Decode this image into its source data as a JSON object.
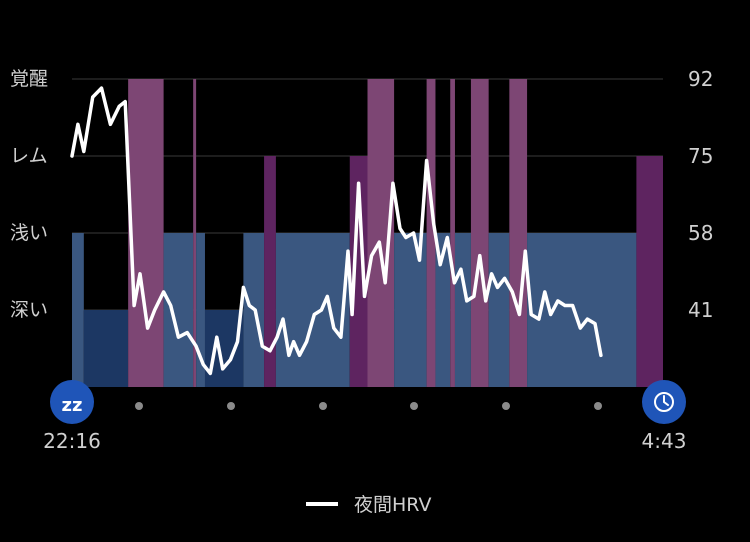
{
  "chart_data": {
    "type": "area",
    "y_left_ticks": [
      "覚醒",
      "レム",
      "浅い",
      "深い"
    ],
    "y_right_ticks": [
      "92",
      "75",
      "58",
      "41"
    ],
    "x_start": "22:16",
    "x_end": "4:43",
    "legend": "夜間HRV",
    "ylim": [
      24,
      92
    ],
    "legend_position": "bottom-center",
    "grid": true,
    "colors": {
      "awake": "#7d4674",
      "rem": "#5e2460",
      "light": "#3a5780",
      "deep": "#1c3763",
      "line": "#ffffff",
      "grid": "#3a3a3a",
      "icon": "#1f55b8"
    },
    "icons": {
      "start": "sleep-zz-icon",
      "end": "clock-icon"
    },
    "stages": [
      {
        "stage": "light",
        "start": 0.0,
        "end": 0.02
      },
      {
        "stage": "deep",
        "start": 0.02,
        "end": 0.095
      },
      {
        "stage": "awake",
        "start": 0.095,
        "end": 0.155
      },
      {
        "stage": "light",
        "start": 0.155,
        "end": 0.205
      },
      {
        "stage": "awake",
        "start": 0.205,
        "end": 0.21
      },
      {
        "stage": "light",
        "start": 0.21,
        "end": 0.225
      },
      {
        "stage": "deep",
        "start": 0.225,
        "end": 0.29
      },
      {
        "stage": "light",
        "start": 0.29,
        "end": 0.325
      },
      {
        "stage": "rem",
        "start": 0.325,
        "end": 0.345
      },
      {
        "stage": "light",
        "start": 0.345,
        "end": 0.47
      },
      {
        "stage": "rem",
        "start": 0.47,
        "end": 0.5
      },
      {
        "stage": "awake",
        "start": 0.5,
        "end": 0.545
      },
      {
        "stage": "light",
        "start": 0.545,
        "end": 0.6
      },
      {
        "stage": "awake",
        "start": 0.6,
        "end": 0.615
      },
      {
        "stage": "light",
        "start": 0.615,
        "end": 0.64
      },
      {
        "stage": "awake",
        "start": 0.64,
        "end": 0.648
      },
      {
        "stage": "light",
        "start": 0.648,
        "end": 0.675
      },
      {
        "stage": "awake",
        "start": 0.675,
        "end": 0.705
      },
      {
        "stage": "light",
        "start": 0.705,
        "end": 0.74
      },
      {
        "stage": "awake",
        "start": 0.74,
        "end": 0.77
      },
      {
        "stage": "light",
        "start": 0.77,
        "end": 0.955
      },
      {
        "stage": "rem",
        "start": 0.955,
        "end": 1.0
      }
    ],
    "series": [
      {
        "values": [
          {
            "x": 0.0,
            "y": 75
          },
          {
            "x": 0.01,
            "y": 82
          },
          {
            "x": 0.02,
            "y": 76
          },
          {
            "x": 0.035,
            "y": 88
          },
          {
            "x": 0.05,
            "y": 90
          },
          {
            "x": 0.065,
            "y": 82
          },
          {
            "x": 0.08,
            "y": 86
          },
          {
            "x": 0.09,
            "y": 87
          },
          {
            "x": 0.105,
            "y": 42
          },
          {
            "x": 0.115,
            "y": 49
          },
          {
            "x": 0.128,
            "y": 37
          },
          {
            "x": 0.14,
            "y": 41
          },
          {
            "x": 0.155,
            "y": 45
          },
          {
            "x": 0.167,
            "y": 42
          },
          {
            "x": 0.18,
            "y": 35
          },
          {
            "x": 0.195,
            "y": 36
          },
          {
            "x": 0.21,
            "y": 33
          },
          {
            "x": 0.222,
            "y": 29
          },
          {
            "x": 0.234,
            "y": 27
          },
          {
            "x": 0.245,
            "y": 35
          },
          {
            "x": 0.255,
            "y": 28
          },
          {
            "x": 0.268,
            "y": 30
          },
          {
            "x": 0.28,
            "y": 34
          },
          {
            "x": 0.29,
            "y": 46
          },
          {
            "x": 0.3,
            "y": 42
          },
          {
            "x": 0.31,
            "y": 41
          },
          {
            "x": 0.322,
            "y": 33
          },
          {
            "x": 0.335,
            "y": 32
          },
          {
            "x": 0.347,
            "y": 35
          },
          {
            "x": 0.357,
            "y": 39
          },
          {
            "x": 0.367,
            "y": 31
          },
          {
            "x": 0.375,
            "y": 34
          },
          {
            "x": 0.385,
            "y": 31
          },
          {
            "x": 0.397,
            "y": 34
          },
          {
            "x": 0.41,
            "y": 40
          },
          {
            "x": 0.422,
            "y": 41
          },
          {
            "x": 0.432,
            "y": 44
          },
          {
            "x": 0.443,
            "y": 37
          },
          {
            "x": 0.455,
            "y": 35
          },
          {
            "x": 0.467,
            "y": 54
          },
          {
            "x": 0.474,
            "y": 40
          },
          {
            "x": 0.485,
            "y": 69
          },
          {
            "x": 0.495,
            "y": 44
          },
          {
            "x": 0.507,
            "y": 53
          },
          {
            "x": 0.52,
            "y": 56
          },
          {
            "x": 0.53,
            "y": 47
          },
          {
            "x": 0.543,
            "y": 69
          },
          {
            "x": 0.555,
            "y": 59
          },
          {
            "x": 0.565,
            "y": 57
          },
          {
            "x": 0.578,
            "y": 58
          },
          {
            "x": 0.588,
            "y": 52
          },
          {
            "x": 0.6,
            "y": 74
          },
          {
            "x": 0.612,
            "y": 60
          },
          {
            "x": 0.623,
            "y": 51
          },
          {
            "x": 0.635,
            "y": 57
          },
          {
            "x": 0.647,
            "y": 47
          },
          {
            "x": 0.658,
            "y": 50
          },
          {
            "x": 0.668,
            "y": 43
          },
          {
            "x": 0.68,
            "y": 44
          },
          {
            "x": 0.69,
            "y": 53
          },
          {
            "x": 0.7,
            "y": 43
          },
          {
            "x": 0.71,
            "y": 49
          },
          {
            "x": 0.72,
            "y": 46
          },
          {
            "x": 0.732,
            "y": 48
          },
          {
            "x": 0.745,
            "y": 45
          },
          {
            "x": 0.757,
            "y": 40
          },
          {
            "x": 0.767,
            "y": 54
          },
          {
            "x": 0.777,
            "y": 40
          },
          {
            "x": 0.79,
            "y": 39
          },
          {
            "x": 0.8,
            "y": 45
          },
          {
            "x": 0.81,
            "y": 40
          },
          {
            "x": 0.822,
            "y": 43
          },
          {
            "x": 0.834,
            "y": 42
          },
          {
            "x": 0.847,
            "y": 42
          },
          {
            "x": 0.86,
            "y": 37
          },
          {
            "x": 0.872,
            "y": 39
          },
          {
            "x": 0.885,
            "y": 38
          },
          {
            "x": 0.895,
            "y": 31
          }
        ]
      }
    ]
  }
}
